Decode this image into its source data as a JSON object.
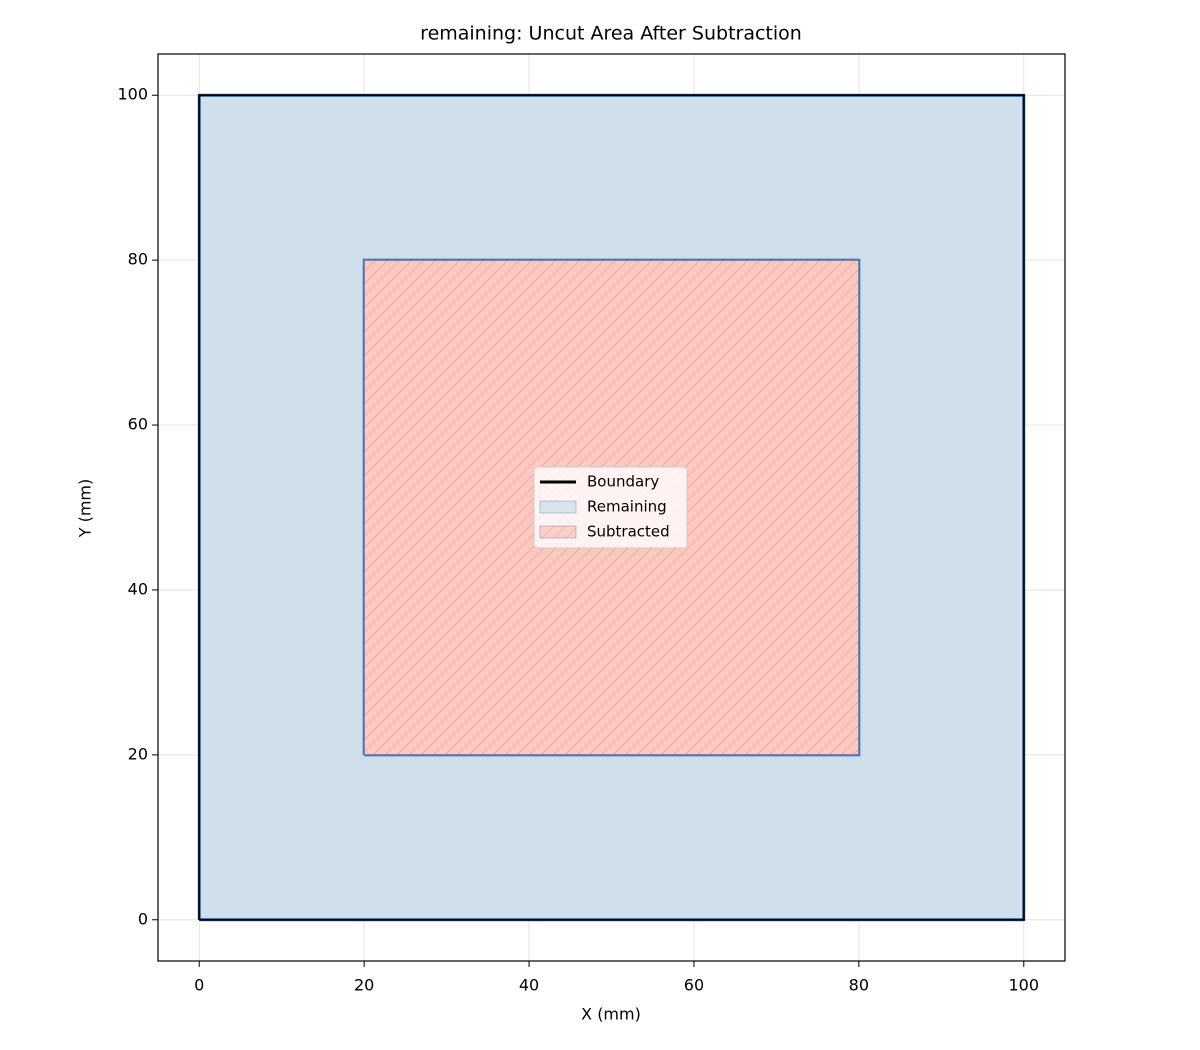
{
  "chart_data": {
    "type": "polygon",
    "title": "remaining: Uncut Area After Subtraction",
    "xlabel": "X (mm)",
    "ylabel": "Y (mm)",
    "xlim": [
      -5,
      105
    ],
    "ylim": [
      -5,
      105
    ],
    "xticks": [
      0,
      20,
      40,
      60,
      80,
      100
    ],
    "yticks": [
      0,
      20,
      40,
      60,
      80,
      100
    ],
    "grid": true,
    "legend": "center",
    "series": [
      {
        "name": "Remaining",
        "kind": "patch",
        "color": "#cfdfeb",
        "edgecolor": "#3a85c8",
        "x": [
          0,
          100,
          100,
          0,
          0,
          null,
          20,
          80,
          80,
          20,
          20
        ],
        "y": [
          0,
          0,
          100,
          100,
          0,
          null,
          20,
          20,
          80,
          80,
          20
        ]
      },
      {
        "name": "Boundary",
        "kind": "line",
        "color": "#000000",
        "x": [
          0,
          100,
          100,
          0,
          0
        ],
        "y": [
          0,
          0,
          100,
          100,
          0
        ]
      },
      {
        "name": "Subtracted",
        "kind": "patch",
        "color": "#fcc9c1",
        "edgecolor": "#5a6aa0",
        "hatch": "/",
        "hatch_color": "#f5a99d",
        "x": [
          20,
          80,
          80,
          20,
          20
        ],
        "y": [
          20,
          20,
          80,
          80,
          20
        ]
      }
    ],
    "legend_order": [
      1,
      0,
      2
    ]
  }
}
